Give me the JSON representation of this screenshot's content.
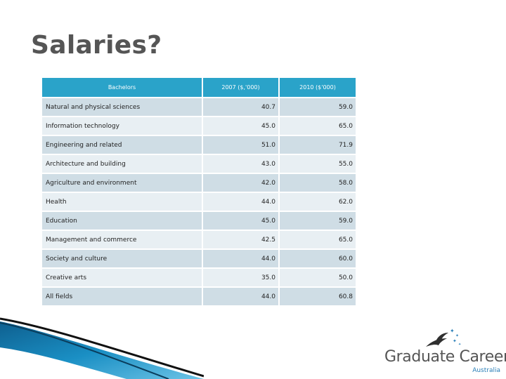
{
  "slide": {
    "title": "Salaries?"
  },
  "table": {
    "headers": [
      "Bachelors",
      "2007 ($,'000)",
      "2010 ($'000)"
    ],
    "rows": [
      [
        "Natural and physical sciences",
        "40.7",
        "59.0"
      ],
      [
        "Information technology",
        "45.0",
        "65.0"
      ],
      [
        "Engineering and related",
        "51.0",
        "71.9"
      ],
      [
        "Architecture and building",
        "43.0",
        "55.0"
      ],
      [
        "Agriculture and environment",
        "42.0",
        "58.0"
      ],
      [
        "Health",
        "44.0",
        "62.0"
      ],
      [
        "Education",
        "45.0",
        "59.0"
      ],
      [
        "Management and commerce",
        "42.5",
        "65.0"
      ],
      [
        "Society and culture",
        "44.0",
        "60.0"
      ],
      [
        "Creative arts",
        "35.0",
        "50.0"
      ],
      [
        "All fields",
        "44.0",
        "60.8"
      ]
    ]
  },
  "logo": {
    "name": "Graduate Careers",
    "sub": "Australia",
    "icon": "bird-stars-icon"
  },
  "colors": {
    "header": "#2aa3c9",
    "row_a": "#cfdde5",
    "row_b": "#e8eff3",
    "title": "#555555",
    "swoosh": "#1a8fc4"
  }
}
